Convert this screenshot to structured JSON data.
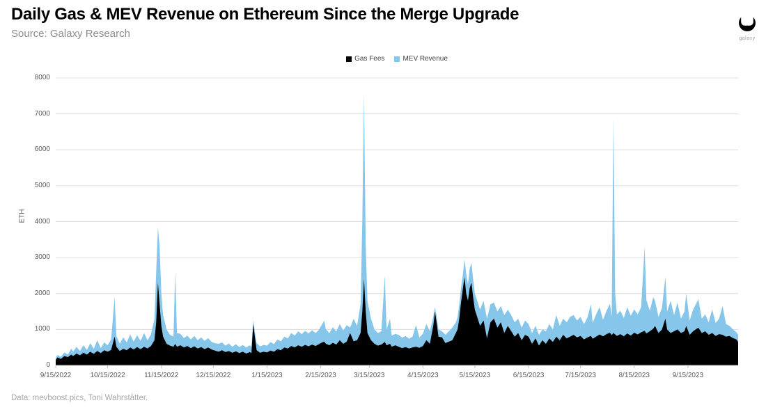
{
  "header": {
    "title": "Daily Gas & MEV Revenue on Ethereum Since the Merge Upgrade",
    "source": "Source: Galaxy Research",
    "logo_label": "galaxy"
  },
  "footer": {
    "credit": "Data: mevboost.pics, Toni Wahrstätter."
  },
  "legend": [
    {
      "label": "Gas Fees",
      "color": "#000000"
    },
    {
      "label": "MEV Revenue",
      "color": "#85C6EA"
    }
  ],
  "axes": {
    "y_label": "ETH",
    "y_ticks": [
      {
        "value": 0,
        "label": "0"
      },
      {
        "value": 1000,
        "label": "1000"
      },
      {
        "value": 2000,
        "label": "2000"
      },
      {
        "value": 3000,
        "label": "3000"
      },
      {
        "value": 4000,
        "label": "4000"
      },
      {
        "value": 5000,
        "label": "5000"
      },
      {
        "value": 6000,
        "label": "6000"
      },
      {
        "value": 7000,
        "label": "7000"
      },
      {
        "value": 8000,
        "label": "8000"
      }
    ],
    "x_ticks": [
      {
        "day": 0,
        "label": "9/15/2022"
      },
      {
        "day": 30,
        "label": "10/15/2022"
      },
      {
        "day": 61,
        "label": "11/15/2022"
      },
      {
        "day": 91,
        "label": "12/15/2022"
      },
      {
        "day": 122,
        "label": "1/15/2023"
      },
      {
        "day": 153,
        "label": "2/15/2023"
      },
      {
        "day": 181,
        "label": "3/15/2023"
      },
      {
        "day": 212,
        "label": "4/15/2023"
      },
      {
        "day": 242,
        "label": "5/15/2023"
      },
      {
        "day": 273,
        "label": "6/15/2023"
      },
      {
        "day": 303,
        "label": "7/15/2023"
      },
      {
        "day": 334,
        "label": "8/15/2023"
      },
      {
        "day": 365,
        "label": "9/15/2023"
      }
    ]
  },
  "chart_data": {
    "type": "area",
    "stacked": true,
    "title": "Daily Gas & MEV Revenue on Ethereum Since the Merge Upgrade",
    "xlabel": "",
    "ylabel": "ETH",
    "ylim": [
      0,
      8000
    ],
    "x_domain_days": [
      0,
      394
    ],
    "x_day_zero_label": "9/15/2022",
    "grid": "horizontal",
    "legend_position": "top-center",
    "colors": {
      "gas": "#000000",
      "mev": "#85C6EA",
      "gridline": "#dcdcdc",
      "axis": "#bfbfbf"
    },
    "series": [
      {
        "name": "Gas Fees",
        "color": "#000000"
      },
      {
        "name": "MEV Revenue",
        "color": "#85C6EA"
      }
    ],
    "columns": [
      "day_index",
      "gas_fees_eth",
      "gas_plus_mev_total_eth"
    ],
    "points": [
      [
        0,
        150,
        200
      ],
      [
        1,
        220,
        290
      ],
      [
        3,
        180,
        240
      ],
      [
        5,
        260,
        360
      ],
      [
        7,
        230,
        300
      ],
      [
        9,
        300,
        470
      ],
      [
        10,
        260,
        380
      ],
      [
        12,
        330,
        520
      ],
      [
        14,
        280,
        400
      ],
      [
        16,
        350,
        560
      ],
      [
        18,
        300,
        430
      ],
      [
        20,
        380,
        620
      ],
      [
        22,
        320,
        460
      ],
      [
        24,
        400,
        700
      ],
      [
        26,
        340,
        480
      ],
      [
        28,
        420,
        640
      ],
      [
        30,
        380,
        560
      ],
      [
        32,
        430,
        720
      ],
      [
        34,
        800,
        1900
      ],
      [
        35,
        520,
        820
      ],
      [
        37,
        400,
        600
      ],
      [
        39,
        460,
        780
      ],
      [
        41,
        420,
        640
      ],
      [
        43,
        500,
        860
      ],
      [
        45,
        440,
        660
      ],
      [
        47,
        510,
        840
      ],
      [
        49,
        450,
        680
      ],
      [
        51,
        520,
        900
      ],
      [
        53,
        470,
        700
      ],
      [
        55,
        540,
        860
      ],
      [
        57,
        700,
        1300
      ],
      [
        58,
        1200,
        2600
      ],
      [
        59,
        2300,
        3850
      ],
      [
        60,
        1700,
        3300
      ],
      [
        61,
        1100,
        2000
      ],
      [
        62,
        800,
        1400
      ],
      [
        64,
        600,
        1000
      ],
      [
        66,
        550,
        850
      ],
      [
        68,
        520,
        800
      ],
      [
        69,
        600,
        2600
      ],
      [
        70,
        520,
        900
      ],
      [
        72,
        560,
        880
      ],
      [
        74,
        500,
        760
      ],
      [
        76,
        540,
        830
      ],
      [
        78,
        480,
        720
      ],
      [
        80,
        530,
        820
      ],
      [
        82,
        470,
        700
      ],
      [
        84,
        510,
        780
      ],
      [
        86,
        450,
        680
      ],
      [
        88,
        500,
        760
      ],
      [
        90,
        440,
        650
      ],
      [
        92,
        410,
        620
      ],
      [
        94,
        380,
        600
      ],
      [
        96,
        420,
        640
      ],
      [
        98,
        370,
        550
      ],
      [
        100,
        400,
        610
      ],
      [
        102,
        350,
        520
      ],
      [
        104,
        390,
        590
      ],
      [
        106,
        340,
        510
      ],
      [
        108,
        380,
        570
      ],
      [
        110,
        330,
        500
      ],
      [
        112,
        370,
        560
      ],
      [
        113,
        340,
        520
      ],
      [
        114,
        1150,
        1250
      ],
      [
        116,
        420,
        620
      ],
      [
        118,
        350,
        530
      ],
      [
        120,
        380,
        570
      ],
      [
        122,
        360,
        550
      ],
      [
        124,
        410,
        650
      ],
      [
        126,
        380,
        590
      ],
      [
        128,
        450,
        720
      ],
      [
        130,
        420,
        670
      ],
      [
        132,
        500,
        800
      ],
      [
        134,
        470,
        750
      ],
      [
        136,
        540,
        900
      ],
      [
        138,
        500,
        830
      ],
      [
        140,
        560,
        950
      ],
      [
        142,
        520,
        870
      ],
      [
        144,
        570,
        960
      ],
      [
        146,
        530,
        890
      ],
      [
        148,
        580,
        980
      ],
      [
        150,
        540,
        900
      ],
      [
        152,
        590,
        990
      ],
      [
        153,
        620,
        1080
      ],
      [
        155,
        660,
        1250
      ],
      [
        156,
        600,
        1000
      ],
      [
        158,
        560,
        900
      ],
      [
        160,
        630,
        1060
      ],
      [
        162,
        580,
        940
      ],
      [
        164,
        700,
        1150
      ],
      [
        166,
        600,
        970
      ],
      [
        168,
        660,
        1120
      ],
      [
        170,
        900,
        1050
      ],
      [
        172,
        670,
        1300
      ],
      [
        174,
        700,
        1100
      ],
      [
        176,
        900,
        1700
      ],
      [
        177,
        1500,
        4000
      ],
      [
        178,
        2400,
        7550
      ],
      [
        179,
        1500,
        3300
      ],
      [
        180,
        900,
        1800
      ],
      [
        182,
        700,
        1300
      ],
      [
        184,
        600,
        1000
      ],
      [
        186,
        550,
        900
      ],
      [
        188,
        580,
        950
      ],
      [
        190,
        650,
        2500
      ],
      [
        191,
        560,
        1000
      ],
      [
        193,
        600,
        1300
      ],
      [
        194,
        520,
        830
      ],
      [
        196,
        560,
        880
      ],
      [
        198,
        520,
        850
      ],
      [
        200,
        480,
        770
      ],
      [
        202,
        510,
        820
      ],
      [
        204,
        470,
        740
      ],
      [
        206,
        500,
        800
      ],
      [
        208,
        520,
        1120
      ],
      [
        210,
        490,
        780
      ],
      [
        212,
        540,
        880
      ],
      [
        214,
        700,
        1150
      ],
      [
        216,
        600,
        950
      ],
      [
        218,
        1100,
        1350
      ],
      [
        219,
        1500,
        1620
      ],
      [
        220,
        1150,
        1350
      ],
      [
        221,
        800,
        1000
      ],
      [
        223,
        780,
        950
      ],
      [
        225,
        620,
        850
      ],
      [
        227,
        660,
        950
      ],
      [
        229,
        700,
        1050
      ],
      [
        231,
        900,
        1200
      ],
      [
        232,
        1000,
        1350
      ],
      [
        233,
        1300,
        1700
      ],
      [
        234,
        1750,
        2150
      ],
      [
        235,
        2100,
        2500
      ],
      [
        236,
        2450,
        2950
      ],
      [
        237,
        2000,
        2550
      ],
      [
        238,
        1800,
        2250
      ],
      [
        239,
        2150,
        2700
      ],
      [
        240,
        2300,
        2850
      ],
      [
        241,
        1900,
        2400
      ],
      [
        242,
        1550,
        2000
      ],
      [
        243,
        1400,
        1850
      ],
      [
        245,
        1100,
        1550
      ],
      [
        247,
        1250,
        1800
      ],
      [
        249,
        750,
        1300
      ],
      [
        251,
        1200,
        1700
      ],
      [
        253,
        1300,
        1750
      ],
      [
        255,
        1050,
        1500
      ],
      [
        257,
        1200,
        1650
      ],
      [
        259,
        900,
        1400
      ],
      [
        261,
        1100,
        1550
      ],
      [
        263,
        950,
        1400
      ],
      [
        265,
        800,
        1200
      ],
      [
        267,
        900,
        1300
      ],
      [
        269,
        700,
        1050
      ],
      [
        271,
        850,
        1250
      ],
      [
        273,
        800,
        1150
      ],
      [
        275,
        600,
        900
      ],
      [
        277,
        750,
        1100
      ],
      [
        279,
        550,
        850
      ],
      [
        281,
        700,
        1000
      ],
      [
        283,
        600,
        950
      ],
      [
        285,
        750,
        1150
      ],
      [
        287,
        650,
        1000
      ],
      [
        289,
        800,
        1400
      ],
      [
        291,
        700,
        1100
      ],
      [
        293,
        850,
        1300
      ],
      [
        295,
        750,
        1200
      ],
      [
        297,
        800,
        1350
      ],
      [
        299,
        850,
        1400
      ],
      [
        301,
        780,
        1250
      ],
      [
        303,
        820,
        1350
      ],
      [
        305,
        720,
        1140
      ],
      [
        307,
        780,
        1330
      ],
      [
        309,
        820,
        1700
      ],
      [
        310,
        740,
        1180
      ],
      [
        312,
        800,
        1420
      ],
      [
        314,
        860,
        1620
      ],
      [
        316,
        810,
        1270
      ],
      [
        318,
        870,
        1520
      ],
      [
        320,
        910,
        1720
      ],
      [
        321,
        840,
        1350
      ],
      [
        322,
        900,
        6900
      ],
      [
        323,
        860,
        2000
      ],
      [
        324,
        820,
        1420
      ],
      [
        326,
        870,
        1520
      ],
      [
        328,
        810,
        1320
      ],
      [
        330,
        890,
        1620
      ],
      [
        332,
        830,
        1380
      ],
      [
        334,
        910,
        1560
      ],
      [
        336,
        860,
        1420
      ],
      [
        338,
        920,
        1620
      ],
      [
        340,
        960,
        3300
      ],
      [
        341,
        890,
        1820
      ],
      [
        343,
        950,
        1520
      ],
      [
        345,
        1020,
        1900
      ],
      [
        346,
        1100,
        1800
      ],
      [
        348,
        900,
        1350
      ],
      [
        350,
        1000,
        1600
      ],
      [
        352,
        1300,
        2460
      ],
      [
        353,
        1000,
        1500
      ],
      [
        355,
        900,
        1800
      ],
      [
        357,
        950,
        1400
      ],
      [
        359,
        1000,
        1750
      ],
      [
        361,
        900,
        1300
      ],
      [
        363,
        950,
        1500
      ],
      [
        364,
        1100,
        2000
      ],
      [
        366,
        850,
        1250
      ],
      [
        368,
        950,
        1550
      ],
      [
        371,
        1050,
        1840
      ],
      [
        373,
        900,
        1300
      ],
      [
        375,
        950,
        1420
      ],
      [
        377,
        850,
        1200
      ],
      [
        379,
        900,
        1560
      ],
      [
        381,
        820,
        1180
      ],
      [
        383,
        870,
        1300
      ],
      [
        385,
        850,
        1650
      ],
      [
        387,
        800,
        1150
      ],
      [
        389,
        820,
        1100
      ],
      [
        391,
        760,
        1000
      ],
      [
        393,
        720,
        920
      ],
      [
        394,
        650,
        850
      ]
    ]
  }
}
